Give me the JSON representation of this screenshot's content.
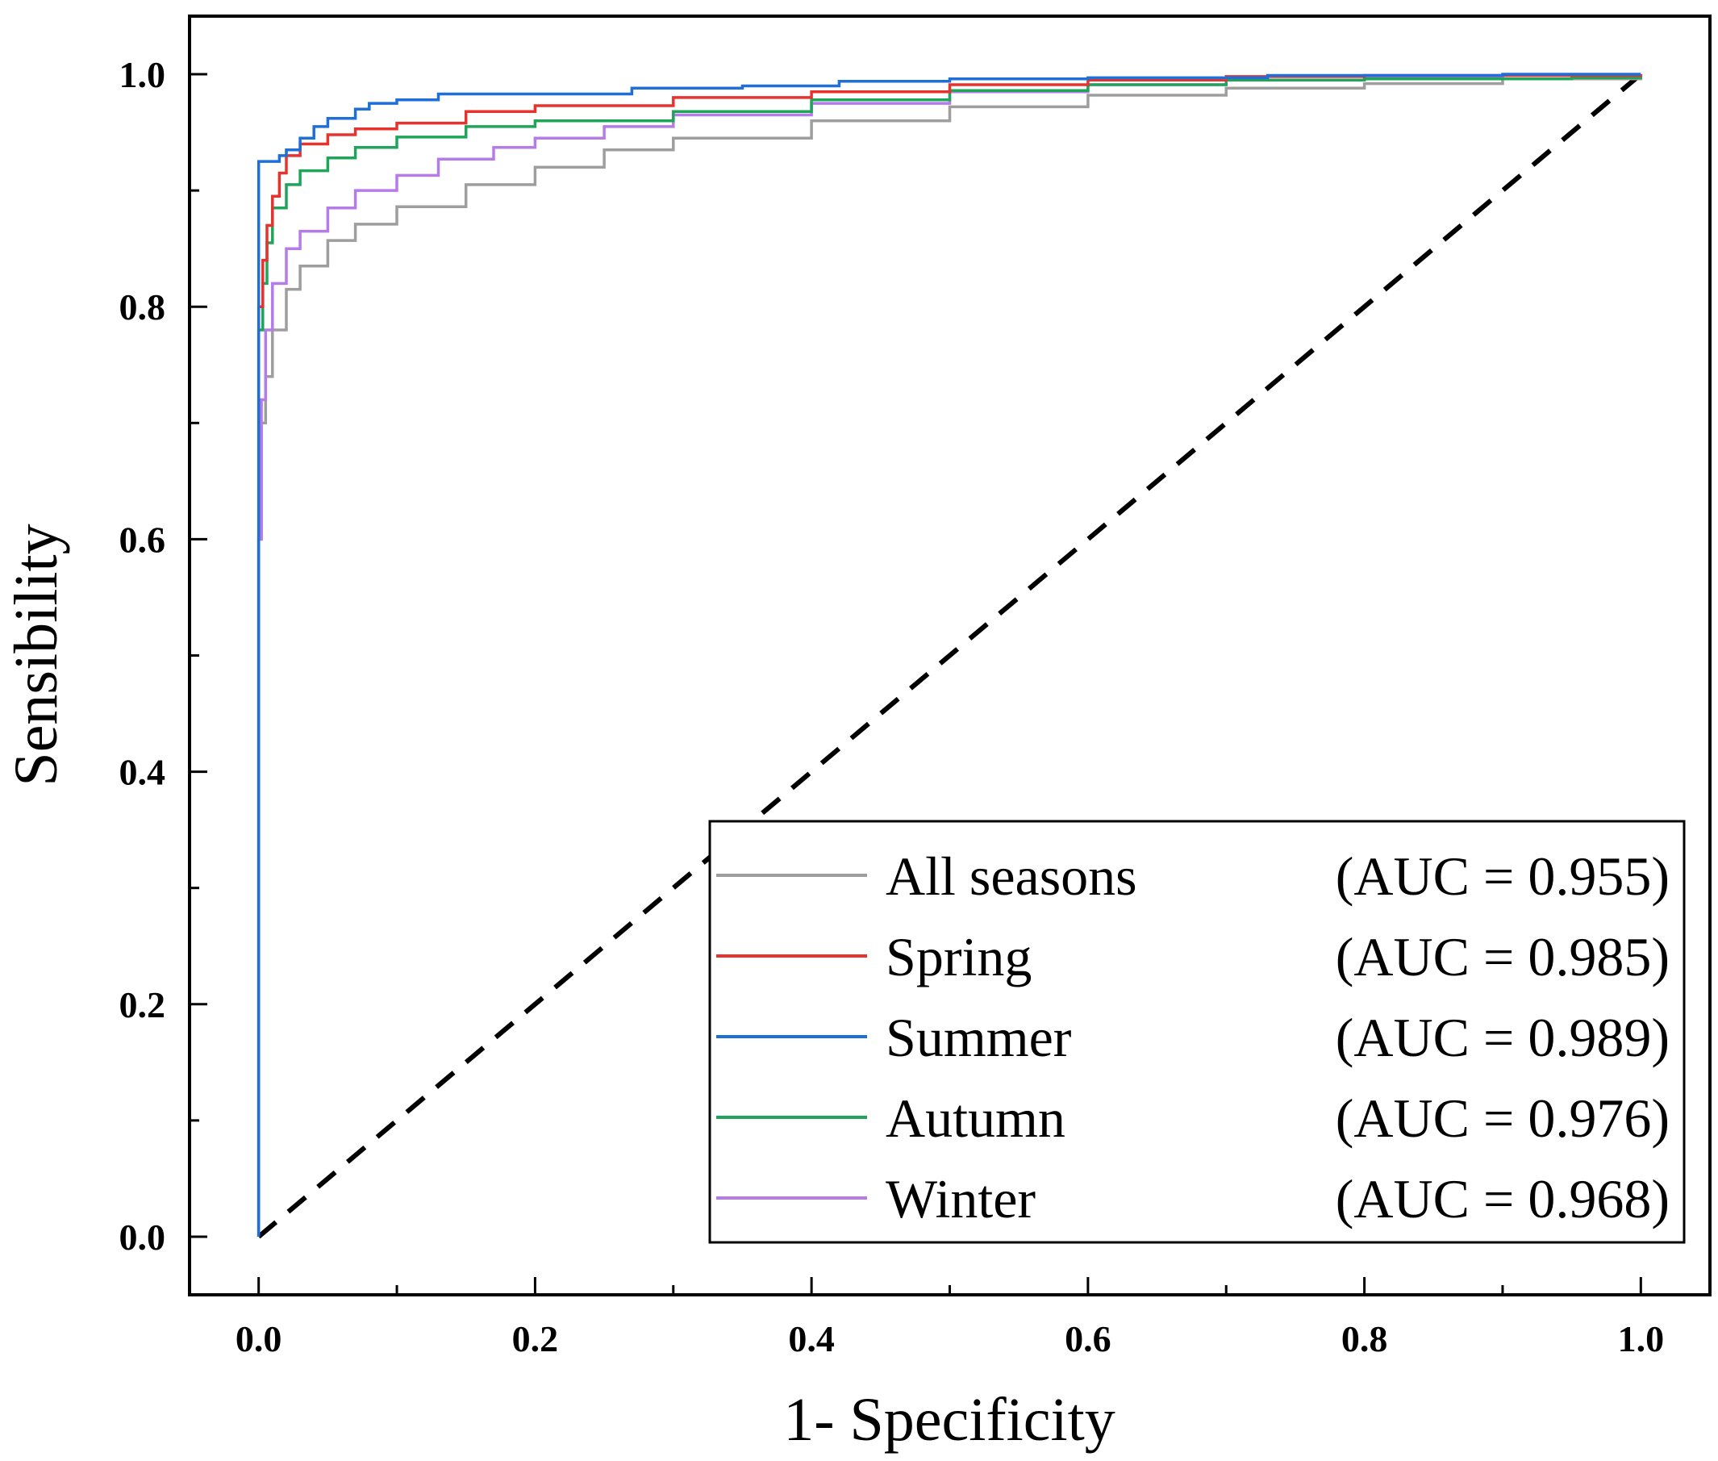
{
  "chart_data": {
    "type": "line",
    "title": "",
    "xlabel": "1- Specificity",
    "ylabel": "Sensibility",
    "xlim": [
      -0.05,
      1.05
    ],
    "ylim": [
      -0.05,
      1.05
    ],
    "grid": false,
    "legend_position": "bottom-right",
    "xticks": [
      "0.0",
      "0.2",
      "0.4",
      "0.6",
      "0.8",
      "1.0"
    ],
    "yticks": [
      "0.0",
      "0.2",
      "0.4",
      "0.6",
      "0.8",
      "1.0"
    ],
    "reference_line": {
      "name": "chance",
      "style": "dashed",
      "color": "#000000",
      "x": [
        0,
        1
      ],
      "y": [
        0,
        1
      ]
    },
    "series": [
      {
        "name": "All seasons",
        "auc_label": "(AUC = 0.955)",
        "color": "#9e9e9e",
        "x": [
          0,
          0,
          0.002,
          0.005,
          0.01,
          0.02,
          0.03,
          0.05,
          0.07,
          0.1,
          0.15,
          0.2,
          0.25,
          0.3,
          0.4,
          0.5,
          0.6,
          0.7,
          0.8,
          0.9,
          1.0
        ],
        "y": [
          0,
          0.6,
          0.7,
          0.74,
          0.78,
          0.815,
          0.835,
          0.857,
          0.871,
          0.886,
          0.905,
          0.92,
          0.935,
          0.945,
          0.96,
          0.972,
          0.982,
          0.988,
          0.992,
          0.996,
          1.0
        ]
      },
      {
        "name": "Spring",
        "auc_label": "(AUC = 0.985)",
        "color": "#e8322e",
        "x": [
          0,
          0,
          0.003,
          0.006,
          0.01,
          0.015,
          0.02,
          0.03,
          0.05,
          0.07,
          0.1,
          0.15,
          0.2,
          0.3,
          0.4,
          0.5,
          0.6,
          0.7,
          0.8,
          0.9,
          1.0
        ],
        "y": [
          0,
          0.8,
          0.84,
          0.87,
          0.895,
          0.915,
          0.93,
          0.94,
          0.948,
          0.953,
          0.958,
          0.968,
          0.973,
          0.98,
          0.985,
          0.991,
          0.995,
          0.998,
          0.999,
          0.999,
          1.0
        ]
      },
      {
        "name": "Summer",
        "auc_label": "(AUC = 0.989)",
        "color": "#1f6fd8",
        "x": [
          0,
          0,
          0.015,
          0.02,
          0.03,
          0.04,
          0.05,
          0.07,
          0.08,
          0.1,
          0.13,
          0.2,
          0.27,
          0.35,
          0.42,
          0.5,
          0.6,
          0.73,
          0.9,
          1.0
        ],
        "y": [
          0,
          0.925,
          0.93,
          0.935,
          0.945,
          0.955,
          0.962,
          0.97,
          0.975,
          0.978,
          0.983,
          0.983,
          0.988,
          0.99,
          0.994,
          0.996,
          0.997,
          0.999,
          1.0,
          1.0
        ]
      },
      {
        "name": "Autumn",
        "auc_label": "(AUC = 0.976)",
        "color": "#1ea55a",
        "x": [
          0,
          0,
          0.003,
          0.006,
          0.01,
          0.02,
          0.03,
          0.05,
          0.07,
          0.1,
          0.15,
          0.2,
          0.3,
          0.4,
          0.5,
          0.6,
          0.7,
          0.8,
          0.9,
          0.95,
          1.0
        ],
        "y": [
          0,
          0.78,
          0.82,
          0.855,
          0.885,
          0.905,
          0.917,
          0.928,
          0.937,
          0.946,
          0.955,
          0.96,
          0.968,
          0.978,
          0.986,
          0.991,
          0.995,
          0.996,
          0.996,
          0.997,
          1.0
        ]
      },
      {
        "name": "Winter",
        "auc_label": "(AUC = 0.968)",
        "color": "#b57be8",
        "x": [
          0,
          0,
          0.002,
          0.005,
          0.01,
          0.02,
          0.03,
          0.05,
          0.07,
          0.1,
          0.13,
          0.17,
          0.2,
          0.25,
          0.3,
          0.4,
          0.5,
          0.6,
          0.7,
          0.8,
          0.9,
          1.0
        ],
        "y": [
          0,
          0.6,
          0.72,
          0.78,
          0.82,
          0.85,
          0.865,
          0.885,
          0.9,
          0.913,
          0.927,
          0.937,
          0.945,
          0.955,
          0.965,
          0.975,
          0.985,
          0.991,
          0.995,
          0.998,
          0.999,
          1.0
        ]
      }
    ]
  }
}
